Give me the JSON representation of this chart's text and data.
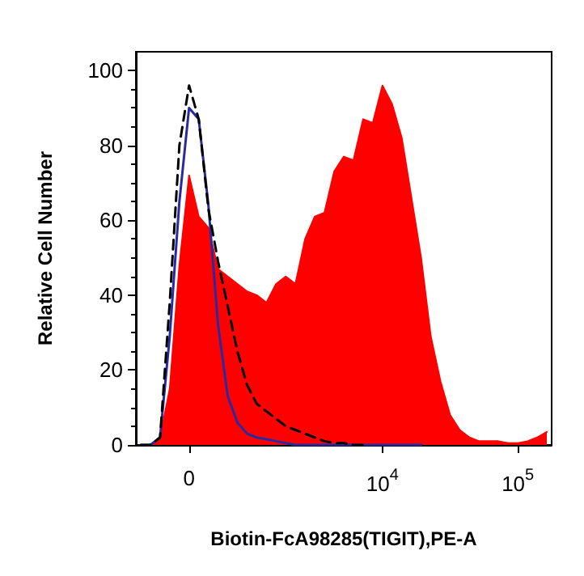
{
  "chart_data": {
    "type": "area",
    "xlabel": "Biotin-FcA98285(TIGIT),PE-A",
    "ylabel": "Relative Cell Number",
    "categories": [
      null,
      null,
      null,
      null,
      null,
      "0",
      null,
      null,
      null,
      null,
      null,
      null,
      null,
      null,
      null,
      null,
      null,
      null,
      null,
      null,
      null,
      null,
      null,
      null,
      null,
      "10$^{4}$",
      null,
      null,
      null,
      null,
      null,
      null,
      null,
      null,
      null,
      null,
      null,
      null,
      null,
      "10$^{5}$",
      null,
      null,
      null
    ],
    "ylim": [
      0,
      105
    ],
    "yticks": [
      0,
      20,
      40,
      60,
      80,
      100
    ],
    "grid": false,
    "marker": "none",
    "series": [
      {
        "color": "#ff0000",
        "line_style": "solid",
        "values": [
          0,
          0,
          2,
          15,
          48,
          72,
          61,
          58,
          47,
          45,
          43,
          41,
          40,
          38,
          43,
          45,
          43,
          55,
          61,
          62,
          73,
          77,
          76,
          87,
          86,
          96,
          91,
          82,
          66,
          50,
          29,
          17,
          8,
          4,
          2,
          1,
          1,
          1,
          0.5,
          0.5,
          1,
          2,
          3.5
        ]
      },
      {
        "type": "line",
        "color": "#2a2aa0",
        "line_style": "solid",
        "values": [
          0,
          0,
          2,
          29,
          65,
          90,
          87,
          64,
          32,
          13,
          6,
          3,
          2,
          1.5,
          1,
          0.5,
          0,
          0,
          0,
          0,
          0,
          0,
          0,
          0,
          0,
          0,
          0,
          0,
          0,
          0,
          null,
          null,
          null,
          null,
          null,
          null,
          null,
          null,
          null,
          null,
          null,
          null,
          null
        ]
      },
      {
        "type": "line",
        "color": "#000000",
        "line_style": "dashed",
        "values": [
          0,
          0,
          2,
          38,
          80,
          96,
          87,
          63,
          49,
          37,
          25,
          16,
          11,
          9,
          7,
          5,
          4,
          3,
          2,
          1,
          0.5,
          0.5,
          0,
          0,
          null,
          null,
          null,
          null,
          null,
          null,
          null,
          null,
          null,
          null,
          null,
          null,
          null,
          null,
          null,
          null,
          null,
          null,
          null
        ]
      }
    ]
  }
}
